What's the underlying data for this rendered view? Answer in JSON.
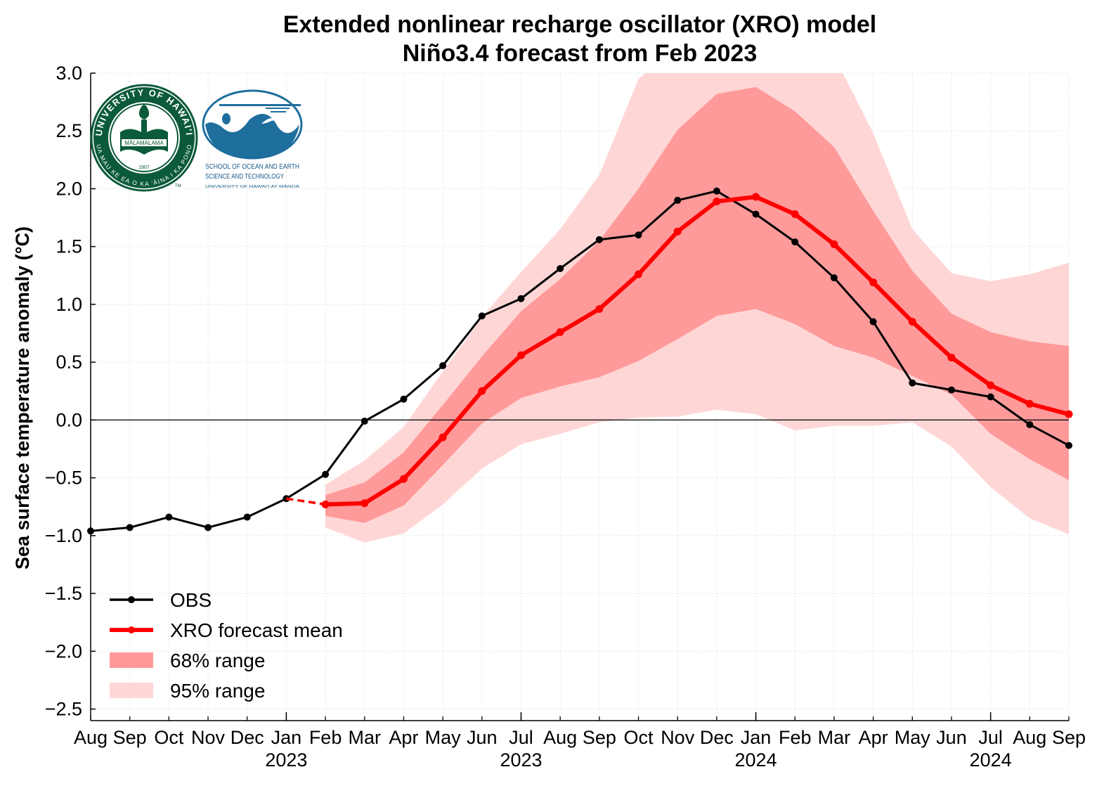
{
  "chart_data": {
    "type": "line",
    "title": "Extended nonlinear recharge oscillator (XRO) model",
    "subtitle": "Niño3.4 forecast from Feb 2023",
    "ylabel": "Sea surface temperature anomaly (°C)",
    "xlabel": "",
    "ylim": [
      -2.6,
      3.0
    ],
    "yticks": [
      3.0,
      2.5,
      2.0,
      1.5,
      1.0,
      0.5,
      0.0,
      -0.5,
      -1.0,
      -1.5,
      -2.0,
      -2.5
    ],
    "ytick_labels": [
      "3.0",
      "2.5",
      "2.0",
      "1.5",
      "1.0",
      "0.5",
      "0.0",
      "−0.5",
      "−1.0",
      "−1.5",
      "−2.0",
      "−2.5"
    ],
    "x_month_labels": [
      "Aug",
      "Sep",
      "Oct",
      "Nov",
      "Dec",
      "Jan",
      "Feb",
      "Mar",
      "Apr",
      "May",
      "Jun",
      "Jul",
      "Aug",
      "Sep",
      "Oct",
      "Nov",
      "Dec",
      "Jan",
      "Feb",
      "Mar",
      "Apr",
      "May",
      "Jun",
      "Jul",
      "Aug",
      "Sep"
    ],
    "x_year_labels": [
      {
        "month_index": 5,
        "label": "2023"
      },
      {
        "month_index": 11,
        "label": "2023"
      },
      {
        "month_index": 17,
        "label": "2024"
      },
      {
        "month_index": 23,
        "label": "2024"
      }
    ],
    "grid": true,
    "legend_position": "bottom-left",
    "series": [
      {
        "name": "OBS",
        "color": "#000000",
        "values": [
          -0.96,
          -0.93,
          -0.84,
          -0.93,
          -0.84,
          -0.68,
          -0.47,
          -0.01,
          0.18,
          0.47,
          0.9,
          1.05,
          1.31,
          1.56,
          1.6,
          1.9,
          1.98,
          1.78,
          1.54,
          1.23,
          0.85,
          0.32,
          0.26,
          0.2,
          -0.04,
          -0.22
        ]
      },
      {
        "name": "XRO forecast mean",
        "color": "#ff0000",
        "start_index": 6,
        "bridge_from": {
          "index": 5,
          "value": -0.68
        },
        "values": [
          -0.73,
          -0.72,
          -0.51,
          -0.15,
          0.25,
          0.56,
          0.76,
          0.96,
          1.26,
          1.63,
          1.89,
          1.93,
          1.78,
          1.52,
          1.19,
          0.85,
          0.54,
          0.3,
          0.14,
          0.05
        ]
      }
    ],
    "bands": [
      {
        "name": "68% range",
        "color": "#ff6b6b",
        "opacity": 0.55,
        "start_index": 6,
        "lower": [
          -0.83,
          -0.89,
          -0.74,
          -0.39,
          -0.03,
          0.19,
          0.29,
          0.37,
          0.51,
          0.7,
          0.9,
          0.96,
          0.83,
          0.64,
          0.54,
          0.38,
          0.22,
          -0.12,
          -0.34,
          -0.52
        ],
        "upper": [
          -0.65,
          -0.54,
          -0.28,
          0.13,
          0.55,
          0.94,
          1.22,
          1.55,
          2.0,
          2.51,
          2.82,
          2.88,
          2.67,
          2.36,
          1.81,
          1.29,
          0.92,
          0.76,
          0.68,
          0.64
        ]
      },
      {
        "name": "95% range",
        "color": "#ffb3b3",
        "opacity": 0.55,
        "start_index": 6,
        "lower": [
          -0.93,
          -1.06,
          -0.98,
          -0.73,
          -0.42,
          -0.21,
          -0.12,
          -0.02,
          0.02,
          0.03,
          0.09,
          0.05,
          -0.09,
          -0.05,
          -0.05,
          -0.02,
          -0.23,
          -0.58,
          -0.85,
          -0.99
        ],
        "upper": [
          -0.56,
          -0.35,
          -0.06,
          0.42,
          0.89,
          1.28,
          1.65,
          2.12,
          2.95,
          3.25,
          3.4,
          3.45,
          3.3,
          3.15,
          2.48,
          1.65,
          1.27,
          1.2,
          1.26,
          1.36
        ]
      }
    ],
    "zero_line": true
  },
  "logos": {
    "uh": {
      "ring_text": "UNIVERSITY OF HAWAI'I",
      "motto": "UA MAU KE EA O KA 'ĀINA I KA PONO",
      "banner": "MĀLAMALAMA",
      "year": "1907",
      "mark": "TM",
      "green": "#0b5a3a"
    },
    "soest": {
      "line1": "SCHOOL OF OCEAN AND EARTH",
      "line2": "SCIENCE AND TECHNOLOGY",
      "line3": "UNIVERSITY OF HAWAI'I AT MĀNOA",
      "blue": "#1e6e9e"
    }
  }
}
